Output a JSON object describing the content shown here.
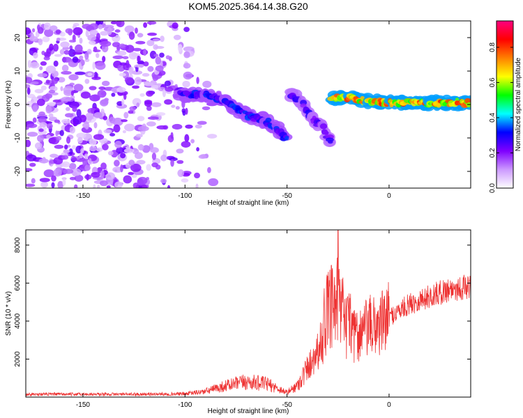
{
  "title": "KOM5.2025.364.14.38.G20",
  "chart_data": [
    {
      "type": "heatmap",
      "name": "spectrogram",
      "xlabel": "Height of straight line (km)",
      "ylabel": "Frequency (Hz)",
      "xlim": [
        -178,
        40
      ],
      "ylim": [
        -25,
        25
      ],
      "xticks": [
        -150,
        -100,
        -50,
        0
      ],
      "yticks": [
        -20,
        -10,
        0,
        10,
        20
      ],
      "colorbar": {
        "label": "Normalized spectral amplitude",
        "range": [
          0,
          0.95
        ],
        "ticks": [
          0.0,
          0.2,
          0.4,
          0.6,
          0.8
        ],
        "colors": [
          "#ffffff",
          "#cc99ff",
          "#7f00ff",
          "#0000ff",
          "#00ffff",
          "#00ff00",
          "#ffff00",
          "#ff8000",
          "#ff0000",
          "#ff0080"
        ]
      },
      "features": [
        {
          "label": "noise region",
          "x_range": [
            -178,
            -100
          ],
          "y_range": [
            -25,
            25
          ],
          "amplitude": 0.15
        },
        {
          "label": "signal track 1",
          "points": [
            [
              -102,
              3
            ],
            [
              -90,
              3
            ],
            [
              -80,
              1
            ],
            [
              -70,
              -3
            ],
            [
              -60,
              -5
            ],
            [
              -55,
              -7
            ],
            [
              -50,
              -11
            ]
          ],
          "amplitude": 0.35
        },
        {
          "label": "signal track 2",
          "points": [
            [
              -48,
              3
            ],
            [
              -42,
              0
            ],
            [
              -38,
              -4
            ],
            [
              -32,
              -7
            ],
            [
              -28,
              -12
            ]
          ],
          "amplitude": 0.3
        },
        {
          "label": "signal track 3",
          "points": [
            [
              -28,
              2
            ],
            [
              -20,
              2
            ],
            [
              -10,
              1
            ],
            [
              0,
              0.5
            ],
            [
              20,
              0.5
            ],
            [
              40,
              0.5
            ]
          ],
          "amplitude": 0.85
        }
      ]
    },
    {
      "type": "line",
      "name": "snr",
      "xlabel": "Height of straight line (km)",
      "ylabel": "SNR (10 * v/v)",
      "xlim": [
        -178,
        40
      ],
      "ylim": [
        0,
        8800
      ],
      "xticks": [
        -150,
        -100,
        -50,
        0
      ],
      "yticks": [
        2000,
        4000,
        6000,
        8000
      ],
      "color": "#ee3333",
      "series": [
        {
          "name": "SNR envelope",
          "x": [
            -178,
            -150,
            -120,
            -100,
            -90,
            -80,
            -70,
            -60,
            -50,
            -45,
            -40,
            -35,
            -30,
            -25,
            -20,
            -15,
            -10,
            -5,
            0,
            10,
            20,
            30,
            40
          ],
          "values": [
            150,
            150,
            150,
            170,
            300,
            600,
            800,
            700,
            250,
            600,
            1500,
            2500,
            3500,
            3900,
            3000,
            3300,
            3700,
            3800,
            4200,
            4900,
            5300,
            5700,
            5800
          ]
        }
      ],
      "peaks": [
        {
          "x": -25,
          "y": 8800
        },
        {
          "x": -24,
          "y": 6200
        }
      ]
    }
  ]
}
